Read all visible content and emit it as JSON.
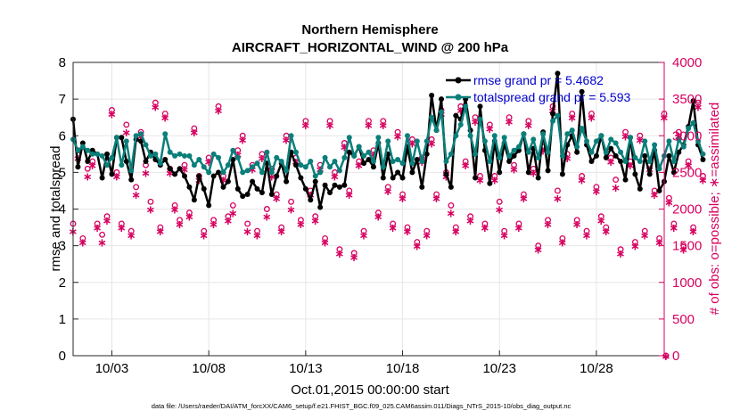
{
  "chart_data": {
    "type": "line",
    "title": "Northern Hemisphere",
    "subtitle": "AIRCRAFT_HORIZONTAL_WIND @ 200 hPa",
    "xlabel": "Oct.01,2015 00:00:00 start",
    "ylabel": "rmse and totalspread",
    "y2label": "# of obs: o=possible; ∗=assimilated",
    "footnote": "data file: /Users/raeder/DAI/ATM_forcXX/CAM6_setup/f.e21.FHIST_BGC.f09_025.CAM6assim.011/Diags_NTrS_2015-10/obs_diag_output.nc",
    "xlim": [
      1,
      31.5
    ],
    "ylim": [
      0,
      8
    ],
    "y2lim": [
      0,
      4000
    ],
    "xticks": [
      3,
      8,
      13,
      18,
      23,
      28
    ],
    "xtick_labels": [
      "10/03",
      "10/08",
      "10/13",
      "10/18",
      "10/23",
      "10/28"
    ],
    "yticks": [
      0,
      1,
      2,
      3,
      4,
      5,
      6,
      7,
      8
    ],
    "y2ticks": [
      0,
      500,
      1000,
      1500,
      2000,
      2500,
      3000,
      3500,
      4000
    ],
    "legend_position": "top-right",
    "x_start": 1,
    "x_step": 0.25,
    "series": [
      {
        "name": "rmse grand pr = 5.4682",
        "color": "#000000",
        "axis": "left",
        "values": [
          6.45,
          5.15,
          5.8,
          5.3,
          5.6,
          5.5,
          4.85,
          5.5,
          4.95,
          5.95,
          5.95,
          5.3,
          4.8,
          5.9,
          5.85,
          5.3,
          5.55,
          5.35,
          5.2,
          5.35,
          5.1,
          4.95,
          5.1,
          4.9,
          4.6,
          4.25,
          4.9,
          4.55,
          4.1,
          4.9,
          5.0,
          4.6,
          4.75,
          5.35,
          4.55,
          4.35,
          4.4,
          4.75,
          4.55,
          4.45,
          5.25,
          4.4,
          4.9,
          5.25,
          4.75,
          5.55,
          5.2,
          4.85,
          4.55,
          4.25,
          4.75,
          4.05,
          4.65,
          4.45,
          4.65,
          4.6,
          4.65,
          5.55,
          5.45,
          5.7,
          5.25,
          5.35,
          5.15,
          5.8,
          4.85,
          5.5,
          4.85,
          5.0,
          4.85,
          5.7,
          5.0,
          5.35,
          4.6,
          5.5,
          7.1,
          6.15,
          7.0,
          4.95,
          4.6,
          6.55,
          6.45,
          7.0,
          6.15,
          4.85,
          6.8,
          5.6,
          4.7,
          5.85,
          5.0,
          5.8,
          5.3,
          5.45,
          5.6,
          6.05,
          5.0,
          5.65,
          4.85,
          6.1,
          5.05,
          6.6,
          7.7,
          4.95,
          5.75,
          6.0,
          5.55,
          7.2,
          5.75,
          5.3,
          5.45,
          6.0,
          5.4,
          5.65,
          5.45,
          5.3,
          4.8,
          5.95,
          4.95,
          4.55,
          5.45,
          4.95,
          5.6,
          4.5,
          4.75,
          5.45,
          5.0,
          5.55,
          5.75,
          6.25,
          6.95,
          5.75,
          5.35
        ]
      },
      {
        "name": "totalspread grand pr = 5.593",
        "color": "#0a7f7a",
        "axis": "left",
        "values": [
          5.9,
          5.6,
          5.7,
          5.6,
          5.5,
          5.5,
          5.45,
          5.2,
          5.4,
          5.95,
          5.2,
          5.85,
          5.05,
          6.0,
          6.05,
          5.75,
          5.45,
          5.5,
          5.25,
          6.05,
          5.55,
          5.45,
          5.5,
          5.45,
          5.45,
          5.2,
          5.35,
          5.15,
          5.0,
          5.5,
          5.4,
          5.0,
          5.2,
          5.6,
          5.4,
          5.0,
          5.05,
          5.15,
          5.25,
          5.0,
          5.55,
          5.0,
          5.4,
          5.3,
          5.05,
          6.0,
          5.55,
          5.2,
          5.15,
          5.3,
          4.9,
          5.0,
          5.4,
          5.15,
          5.3,
          5.05,
          5.4,
          5.95,
          5.45,
          5.7,
          5.45,
          5.55,
          5.3,
          5.95,
          5.15,
          5.85,
          5.3,
          5.35,
          5.25,
          6.0,
          5.25,
          5.85,
          5.3,
          5.85,
          6.5,
          6.15,
          6.65,
          5.3,
          5.5,
          6.0,
          6.3,
          6.8,
          6.0,
          5.5,
          6.45,
          5.85,
          5.3,
          6.0,
          5.4,
          5.95,
          5.45,
          5.6,
          5.7,
          6.05,
          5.55,
          5.9,
          5.4,
          6.05,
          5.55,
          6.4,
          6.55,
          5.45,
          6.05,
          6.15,
          5.7,
          6.2,
          5.85,
          5.55,
          5.85,
          6.0,
          5.55,
          5.9,
          5.8,
          5.55,
          5.3,
          5.95,
          5.4,
          5.3,
          5.85,
          5.3,
          5.75,
          5.1,
          5.45,
          5.85,
          5.3,
          5.9,
          5.7,
          6.2,
          6.35,
          5.85,
          5.5
        ]
      }
    ],
    "obs_possible": {
      "name": "possible",
      "color": "#d6005f",
      "axis": "right",
      "values": [
        1800,
        2800,
        1600,
        2550,
        2650,
        1800,
        1650,
        1900,
        3350,
        2500,
        1800,
        3150,
        1700,
        2300,
        3050,
        2600,
        2100,
        3450,
        1750,
        3300,
        2550,
        2050,
        1850,
        2600,
        1950,
        3100,
        2450,
        1700,
        2700,
        1850,
        3400,
        2450,
        1900,
        2050,
        2800,
        3000,
        1800,
        2600,
        1700,
        2750,
        2000,
        2550,
        2200,
        1750,
        3000,
        2100,
        2700,
        1850,
        3200,
        2250,
        1900,
        2600,
        1600,
        3200,
        2500,
        1450,
        2900,
        2250,
        1400,
        2650,
        1700,
        3200,
        2800,
        1950,
        3200,
        2300,
        1800,
        3050,
        2200,
        1750,
        2950,
        1550,
        2700,
        1700,
        2950,
        2200,
        3350,
        2500,
        2050,
        1750,
        3400,
        2650,
        1900,
        3250,
        2450,
        1800,
        3150,
        2450,
        2100,
        1700,
        3250,
        2600,
        1800,
        2200,
        3200,
        2550,
        1500,
        2850,
        1850,
        3400,
        2250,
        1600,
        2750,
        3300,
        1850,
        2450,
        1700,
        3300,
        2300,
        1900,
        1750,
        2700,
        2400,
        1450,
        3050,
        2650,
        1550,
        3000,
        1700,
        2600,
        2250,
        1600,
        3300,
        2150,
        1800,
        3050,
        1500,
        2650,
        1750,
        3450,
        2450
      ]
    },
    "obs_assimilated": {
      "name": "assimilated",
      "color": "#d6005f",
      "axis": "right",
      "values": [
        1700,
        2700,
        1550,
        2450,
        2600,
        1750,
        1550,
        1850,
        3300,
        2450,
        1750,
        3050,
        1650,
        2200,
        3000,
        2500,
        2000,
        3400,
        1700,
        3250,
        2500,
        2000,
        1800,
        2550,
        1900,
        3050,
        2400,
        1650,
        2650,
        1800,
        3350,
        2400,
        1850,
        1950,
        2750,
        2950,
        1700,
        2550,
        1650,
        2700,
        1900,
        2450,
        2150,
        1700,
        2950,
        2000,
        2650,
        1800,
        3150,
        2200,
        1850,
        2550,
        1550,
        3150,
        2450,
        1400,
        2850,
        2200,
        1350,
        2600,
        1650,
        3150,
        2750,
        1900,
        3150,
        2250,
        1750,
        3000,
        2150,
        1700,
        2900,
        1500,
        2650,
        1650,
        2900,
        2150,
        3300,
        2450,
        1950,
        1700,
        3350,
        2600,
        1850,
        3200,
        2400,
        1750,
        3100,
        2400,
        2000,
        1650,
        3200,
        2550,
        1750,
        2150,
        3150,
        2500,
        1450,
        2800,
        1800,
        3350,
        2150,
        1550,
        2700,
        3250,
        1800,
        2400,
        1650,
        3250,
        2250,
        1850,
        1700,
        2650,
        2300,
        1400,
        3000,
        2600,
        1500,
        2950,
        1650,
        2550,
        2200,
        1550,
        3250,
        2100,
        1750,
        3000,
        1450,
        2600,
        1700,
        3400,
        2400
      ]
    }
  }
}
